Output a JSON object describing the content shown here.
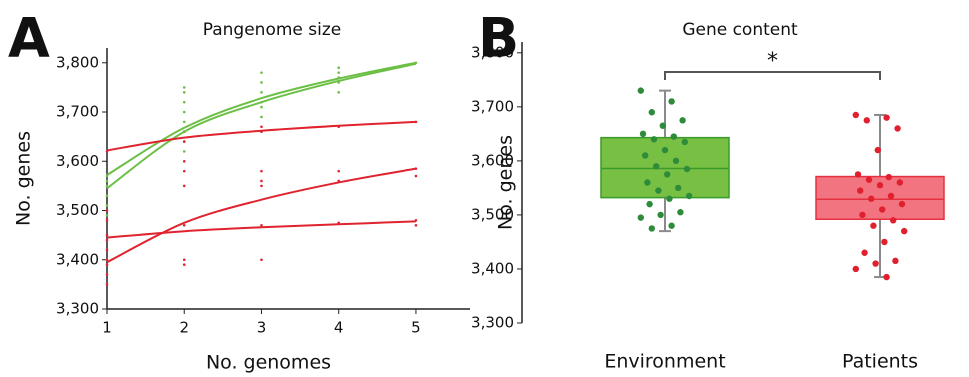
{
  "chart_data": [
    {
      "type": "line",
      "panel_label": "A",
      "title": "Pangenome size",
      "x_label": "No. genomes",
      "y_label": "No. genes",
      "x": [
        1,
        2,
        3,
        4,
        5
      ],
      "xlim": [
        1,
        5.7
      ],
      "xticks": [
        1,
        2,
        3,
        4,
        5
      ],
      "ylim": [
        3300,
        3830
      ],
      "yticks": [
        {
          "value": 3300,
          "label": "3,300"
        },
        {
          "value": 3400,
          "label": "3,400"
        },
        {
          "value": 3500,
          "label": "3,500"
        },
        {
          "value": 3600,
          "label": "3,600"
        },
        {
          "value": 3700,
          "label": "3,700"
        },
        {
          "value": 3800,
          "label": "3,800"
        }
      ],
      "series": [
        {
          "color": "#6cbf45",
          "values": [
            3572,
            3668,
            3728,
            3768,
            3800
          ]
        },
        {
          "color": "#6cbf45",
          "values": [
            3545,
            3660,
            3720,
            3763,
            3798
          ]
        },
        {
          "color": "#e0232e",
          "values": [
            3622,
            3648,
            3662,
            3672,
            3680
          ]
        },
        {
          "color": "#e0232e",
          "values": [
            3395,
            3475,
            3522,
            3557,
            3585
          ]
        },
        {
          "color": "#e0232e",
          "values": [
            3445,
            3458,
            3466,
            3472,
            3478
          ]
        }
      ],
      "points": [
        {
          "color": "#6cbf45",
          "x": [
            1,
            1,
            1,
            1,
            1,
            1,
            2,
            2,
            2,
            2,
            2,
            2,
            2,
            2,
            3,
            3,
            3,
            3,
            3,
            3,
            4,
            4,
            4,
            4,
            4,
            5
          ],
          "y": [
            3490,
            3510,
            3530,
            3550,
            3560,
            3570,
            3620,
            3640,
            3660,
            3680,
            3700,
            3720,
            3740,
            3750,
            3690,
            3710,
            3720,
            3740,
            3760,
            3780,
            3740,
            3760,
            3770,
            3780,
            3790,
            3800
          ]
        },
        {
          "color": "#e0232e",
          "x": [
            1,
            1,
            1,
            1,
            1,
            1,
            1,
            1,
            1,
            1,
            2,
            2,
            2,
            2,
            2,
            2,
            2,
            2,
            3,
            3,
            3,
            3,
            3,
            3,
            3,
            4,
            4,
            4,
            4,
            5,
            5,
            5,
            5,
            5
          ],
          "y": [
            3350,
            3370,
            3390,
            3400,
            3420,
            3440,
            3450,
            3480,
            3500,
            3620,
            3390,
            3400,
            3470,
            3550,
            3580,
            3600,
            3640,
            3660,
            3400,
            3470,
            3550,
            3560,
            3580,
            3660,
            3670,
            3475,
            3560,
            3580,
            3670,
            3470,
            3480,
            3570,
            3585,
            3680
          ]
        }
      ]
    },
    {
      "type": "box",
      "panel_label": "B",
      "title": "Gene content",
      "y_label": "No. genes",
      "annotation": "*",
      "categories": [
        "Environment",
        "Patients"
      ],
      "ylim": [
        3300,
        3820
      ],
      "yticks": [
        {
          "value": 3300,
          "label": "3,300"
        },
        {
          "value": 3400,
          "label": "3,400"
        },
        {
          "value": 3500,
          "label": "3,500"
        },
        {
          "value": 3600,
          "label": "3,600"
        },
        {
          "value": 3700,
          "label": "3,700"
        },
        {
          "value": 3800,
          "label": "3,800"
        }
      ],
      "boxes": [
        {
          "fill": "#77c043",
          "stroke": "#3a9a2a",
          "point_color": "#2e8b3a",
          "whisker_low": 3470,
          "q1": 3532,
          "median": 3586,
          "q3": 3643,
          "whisker_high": 3730,
          "points": [
            3730,
            3710,
            3690,
            3675,
            3665,
            3650,
            3645,
            3640,
            3635,
            3620,
            3610,
            3600,
            3590,
            3585,
            3575,
            3560,
            3550,
            3545,
            3535,
            3530,
            3520,
            3505,
            3500,
            3495,
            3480,
            3475
          ]
        },
        {
          "fill": "#f27480",
          "stroke": "#e53040",
          "point_color": "#e0202f",
          "whisker_low": 3385,
          "q1": 3492,
          "median": 3529,
          "q3": 3571,
          "whisker_high": 3685,
          "points": [
            3685,
            3680,
            3675,
            3660,
            3620,
            3575,
            3570,
            3565,
            3560,
            3555,
            3545,
            3535,
            3530,
            3520,
            3510,
            3500,
            3490,
            3480,
            3470,
            3450,
            3430,
            3415,
            3410,
            3400,
            3385
          ]
        }
      ]
    }
  ]
}
